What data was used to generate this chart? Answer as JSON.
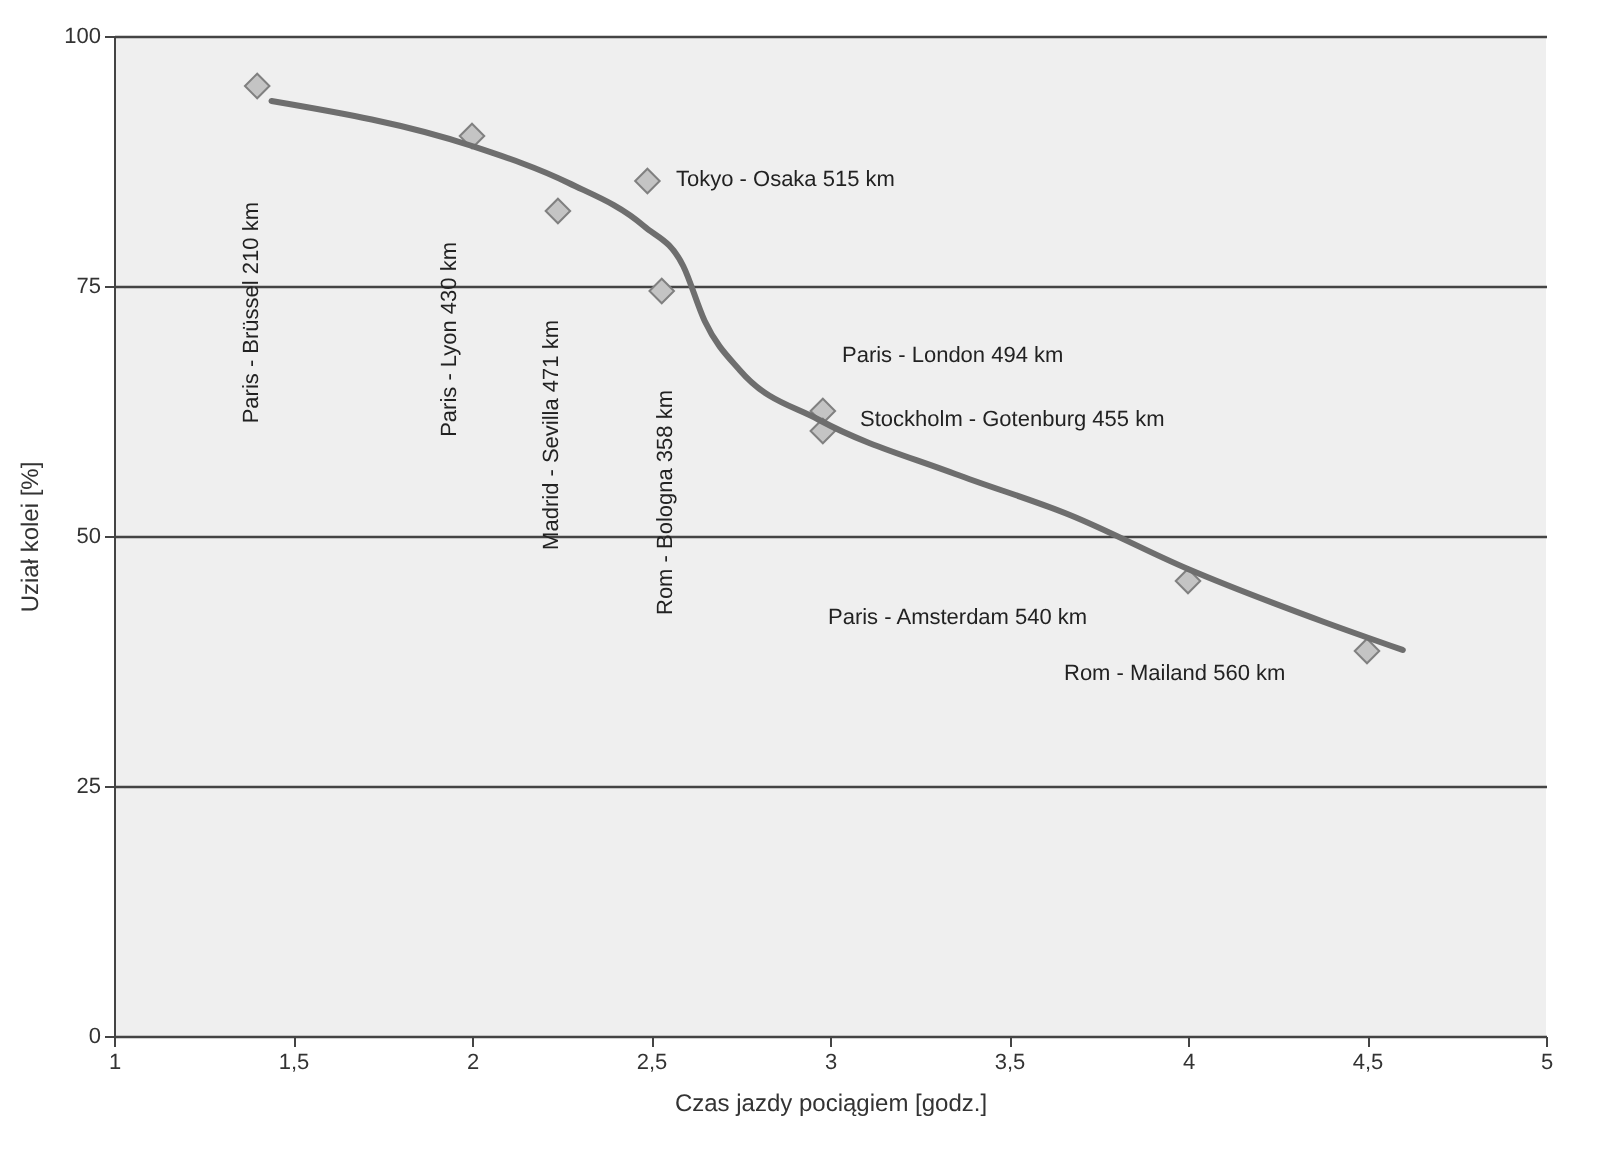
{
  "chart_data": {
    "type": "scatter",
    "xlabel": "Czas jazdy pociągiem [godz.]",
    "ylabel": "Uział kolei [%]",
    "xlim": [
      1,
      5
    ],
    "ylim": [
      0,
      100
    ],
    "xticks": [
      1,
      {
        "value": 1.5,
        "label": "1,5"
      },
      2,
      {
        "value": 2.5,
        "label": "2,5"
      },
      3,
      {
        "value": 3.5,
        "label": "3,5"
      },
      4,
      {
        "value": 4.5,
        "label": "4,5"
      },
      5
    ],
    "yticks": [
      0,
      25,
      50,
      75,
      100
    ],
    "grid": "y",
    "series": [
      {
        "marker": "diamond",
        "color": "#c4c4c4",
        "x": [
          1.4,
          2.0,
          2.24,
          2.49,
          2.53,
          2.98,
          2.98,
          4.0,
          4.5
        ],
        "values": [
          95,
          90,
          82.5,
          85.5,
          74.5,
          62.5,
          60.5,
          45.5,
          38.5
        ]
      },
      {
        "type": "line",
        "color": "#6e6e6e",
        "x": [
          1.44,
          2.0,
          2.27,
          2.48,
          2.59,
          2.65,
          2.75,
          2.97,
          3.35,
          3.67,
          4.0,
          4.38,
          4.6
        ],
        "values": [
          93.5,
          89,
          85.3,
          81,
          77,
          71.5,
          66.5,
          61.6,
          56.2,
          52.1,
          46.7,
          41.4,
          38.6
        ]
      }
    ],
    "annotations": [
      "Paris - Brüssel 210 km",
      "Paris - Lyon 430 km",
      "Madrid - Sevilla 471 km",
      "Rom - Bologna 358 km",
      "Tokyo - Osaka 515 km",
      "Paris - London 494 km",
      "Stockholm - Gotenburg 455 km",
      "Paris - Amsterdam 540 km",
      "Rom - Mailand 560 km"
    ]
  }
}
